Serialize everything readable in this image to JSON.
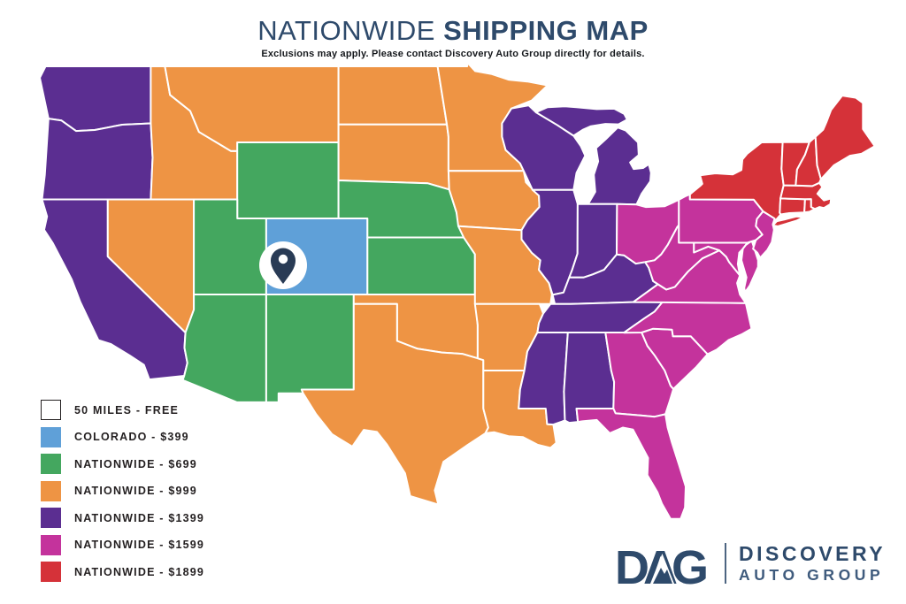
{
  "title": {
    "light": "NATIONWIDE ",
    "bold": "SHIPPING MAP",
    "color": "#2E4A6B"
  },
  "subtitle": "Exclusions may apply. Please contact Discovery Auto Group directly for details.",
  "legend": {
    "items": [
      {
        "key": "free",
        "label": "50 MILES - FREE",
        "color": "#FFFFFF",
        "border": "#231F20"
      },
      {
        "key": "colorado",
        "label": "COLORADO - $399",
        "color": "#5FA0D8"
      },
      {
        "key": "t699",
        "label": "NATIONWIDE - $699",
        "color": "#44A75F"
      },
      {
        "key": "t999",
        "label": "NATIONWIDE - $999",
        "color": "#EE9444"
      },
      {
        "key": "t1399",
        "label": "NATIONWIDE - $1399",
        "color": "#5B2E91"
      },
      {
        "key": "t1599",
        "label": "NATIONWIDE - $1599",
        "color": "#C4339C"
      },
      {
        "key": "t1899",
        "label": "NATIONWIDE - $1899",
        "color": "#D53239"
      }
    ]
  },
  "map": {
    "border_color": "#FFFFFF",
    "pin": {
      "circle_fill": "#FFFFFF",
      "marker_fill": "#293B55"
    },
    "state_tiers": {
      "WA": "t1399",
      "OR": "t1399",
      "CA": "t1399",
      "NV": "t999",
      "ID": "t999",
      "MT": "t999",
      "WY": "t699",
      "UT": "t699",
      "CO": "colorado",
      "AZ": "t699",
      "NM": "t699",
      "ND": "t999",
      "SD": "t999",
      "NE": "t699",
      "KS": "t699",
      "OK": "t999",
      "TX": "t999",
      "MN": "t999",
      "IA": "t999",
      "MO": "t999",
      "AR": "t999",
      "LA": "t999",
      "WI": "t1399",
      "MI": "t1399",
      "IL": "t1399",
      "IN": "t1399",
      "OH": "t1599",
      "KY": "t1399",
      "TN": "t1399",
      "MS": "t1399",
      "AL": "t1399",
      "GA": "t1599",
      "FL": "t1599",
      "SC": "t1599",
      "NC": "t1599",
      "VA": "t1599",
      "WV": "t1599",
      "MD": "t1599",
      "DE": "t1599",
      "PA": "t1599",
      "NJ": "t1599",
      "NY": "t1899",
      "VT": "t1899",
      "NH": "t1899",
      "MA": "t1899",
      "RI": "t1899",
      "CT": "t1899",
      "ME": "t1899"
    }
  },
  "logo": {
    "acronym": "DAG",
    "line1": "DISCOVERY",
    "line2": "AUTO GROUP",
    "color": "#2E4A6B"
  }
}
